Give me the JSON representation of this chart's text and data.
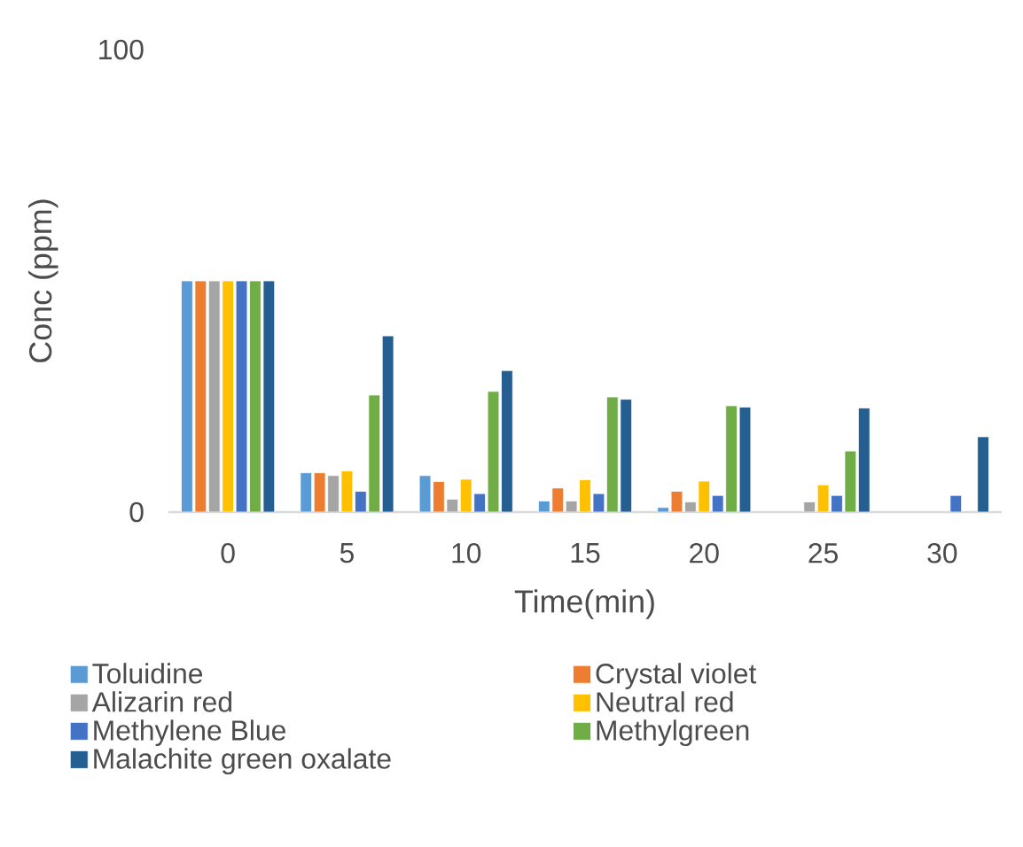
{
  "chart_data": {
    "type": "bar",
    "xlabel": "Time(min)",
    "ylabel": "Conc (ppm)",
    "categories": [
      "0",
      "5",
      "10",
      "15",
      "20",
      "25",
      "30"
    ],
    "ylim": [
      0,
      100
    ],
    "yticks": [
      0,
      100
    ],
    "legend": "bottom",
    "series": [
      {
        "name": "Toluidine",
        "color": "#5b9bd5",
        "values": [
          50,
          8.5,
          7.9,
          2.4,
          1.0,
          null,
          null
        ]
      },
      {
        "name": "Crystal violet",
        "color": "#ed7d31",
        "values": [
          50,
          8.5,
          6.6,
          5.2,
          4.5,
          null,
          null
        ]
      },
      {
        "name": "Alizarin red",
        "color": "#a5a5a5",
        "values": [
          50,
          7.9,
          2.8,
          2.4,
          2.2,
          2.2,
          null
        ]
      },
      {
        "name": "Neutral red",
        "color": "#ffc000",
        "values": [
          50,
          8.9,
          7.1,
          7.0,
          6.7,
          5.9,
          null
        ]
      },
      {
        "name": "Methylene Blue",
        "color": "#4472c4",
        "values": [
          50,
          4.5,
          4.0,
          4.0,
          3.6,
          3.6,
          3.6
        ]
      },
      {
        "name": "Methylgreen",
        "color": "#70ad47",
        "values": [
          50,
          25.3,
          26.1,
          24.9,
          23.0,
          13.2,
          null
        ]
      },
      {
        "name": "Malachite green oxalate",
        "color": "#255e91",
        "values": [
          50,
          38.1,
          30.6,
          24.4,
          22.7,
          22.5,
          16.3
        ]
      }
    ]
  }
}
